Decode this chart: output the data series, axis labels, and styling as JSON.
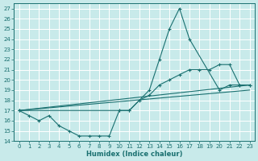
{
  "xlabel": "Humidex (Indice chaleur)",
  "bg_color": "#c8eaea",
  "grid_color": "#ffffff",
  "line_color": "#1a7070",
  "xlim": [
    -0.5,
    23.5
  ],
  "ylim": [
    14,
    27.5
  ],
  "xticks": [
    0,
    1,
    2,
    3,
    4,
    5,
    6,
    7,
    8,
    9,
    10,
    11,
    12,
    13,
    14,
    15,
    16,
    17,
    18,
    19,
    20,
    21,
    22,
    23
  ],
  "yticks": [
    14,
    15,
    16,
    17,
    18,
    19,
    20,
    21,
    22,
    23,
    24,
    25,
    26,
    27
  ],
  "lines": [
    {
      "x": [
        0,
        1,
        2,
        3,
        4,
        5,
        6,
        7,
        8,
        9,
        10,
        11,
        13,
        14,
        15,
        16,
        17,
        20,
        21,
        22,
        23
      ],
      "y": [
        17,
        16.5,
        16,
        16.5,
        15.5,
        15,
        14.5,
        14.5,
        14.5,
        14.5,
        17,
        17,
        19,
        22,
        25,
        27,
        24,
        19,
        19.5,
        19.5,
        19.5
      ],
      "markers": true
    },
    {
      "x": [
        0,
        10,
        11,
        12,
        13,
        14,
        15,
        16,
        17,
        18,
        19,
        20,
        21,
        22,
        23
      ],
      "y": [
        17,
        17,
        17,
        18,
        18.5,
        19.5,
        20,
        20.5,
        21,
        21,
        21,
        21.5,
        21.5,
        19.5,
        19.5
      ],
      "markers": true
    },
    {
      "x": [
        0,
        23
      ],
      "y": [
        17,
        19.5
      ],
      "markers": false
    },
    {
      "x": [
        0,
        23
      ],
      "y": [
        17,
        19
      ],
      "markers": false
    }
  ]
}
